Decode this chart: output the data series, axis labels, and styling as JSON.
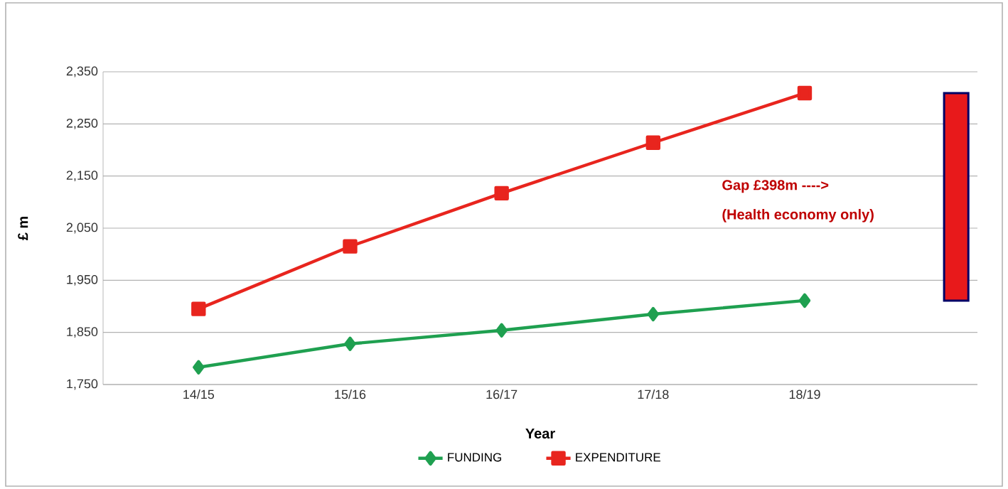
{
  "chart_data": {
    "type": "line",
    "xlabel": "Year",
    "ylabel": "£ m",
    "categories": [
      "14/15",
      "15/16",
      "16/17",
      "17/18",
      "18/19",
      null
    ],
    "series": [
      {
        "name": "FUNDING",
        "color": "#1fa050",
        "marker": "diamond",
        "values": [
          1783,
          1828,
          1854,
          1885,
          1911,
          null
        ]
      },
      {
        "name": "EXPENDITURE",
        "color": "#e8251e",
        "marker": "square",
        "values": [
          1895,
          2015,
          2117,
          2214,
          2309,
          null
        ]
      },
      {
        "type": "bar",
        "color": "#e8191b",
        "values": [
          null,
          null,
          null,
          null,
          null,
          398
        ],
        "base": [
          null,
          null,
          null,
          null,
          null,
          1911
        ]
      }
    ],
    "ylim": [
      1750,
      2350
    ],
    "yticks": [
      {
        "value": 1750,
        "label": "1,750"
      },
      {
        "value": 1850,
        "label": "1,850"
      },
      {
        "value": 1950,
        "label": "1,950"
      },
      {
        "value": 2050,
        "label": "2,050"
      },
      {
        "value": 2150,
        "label": "2,150"
      },
      {
        "value": 2250,
        "label": "2,250"
      },
      {
        "value": 2350,
        "label": "2,350"
      }
    ],
    "annotations": [
      "Gap £398m    ---->",
      "(Health economy only)"
    ],
    "grid": "y",
    "legend": "bottom",
    "line_style": "solid"
  }
}
